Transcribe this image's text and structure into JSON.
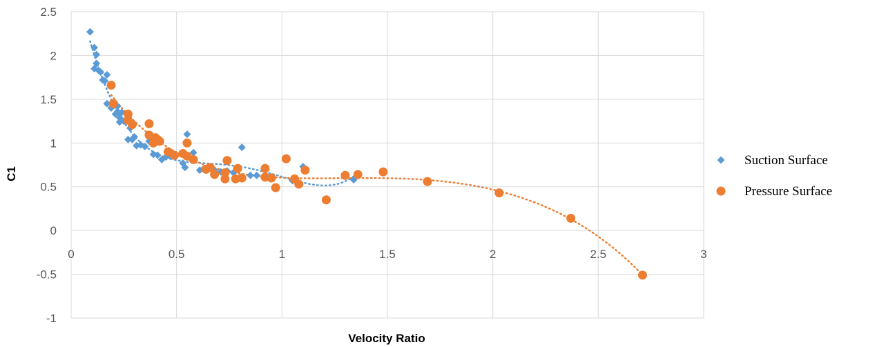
{
  "chart_data": {
    "type": "scatter",
    "xlabel": "Velocity Ratio",
    "ylabel": "C1",
    "xlim": [
      0,
      3
    ],
    "ylim": [
      -1,
      2.5
    ],
    "x_ticks": [
      "0",
      "0.5",
      "1",
      "1.5",
      "2",
      "2.5",
      "3"
    ],
    "y_ticks": [
      "-1",
      "-0.5",
      "0",
      "0.5",
      "1",
      "1.5",
      "2",
      "2.5"
    ],
    "grid": true,
    "legend": "right",
    "series": [
      {
        "name": "Suction Surface",
        "marker": "diamond",
        "color": "#5B9BD5",
        "trendline": "polynomial",
        "points": [
          [
            0.09,
            2.27
          ],
          [
            0.11,
            2.09
          ],
          [
            0.12,
            2.01
          ],
          [
            0.12,
            1.91
          ],
          [
            0.11,
            1.85
          ],
          [
            0.13,
            1.83
          ],
          [
            0.14,
            1.81
          ],
          [
            0.15,
            1.72
          ],
          [
            0.16,
            1.71
          ],
          [
            0.17,
            1.78
          ],
          [
            0.17,
            1.45
          ],
          [
            0.19,
            1.4
          ],
          [
            0.2,
            1.45
          ],
          [
            0.21,
            1.33
          ],
          [
            0.22,
            1.42
          ],
          [
            0.22,
            1.36
          ],
          [
            0.23,
            1.29
          ],
          [
            0.23,
            1.24
          ],
          [
            0.24,
            1.35
          ],
          [
            0.25,
            1.25
          ],
          [
            0.27,
            1.04
          ],
          [
            0.28,
            1.17
          ],
          [
            0.29,
            1.04
          ],
          [
            0.3,
            1.07
          ],
          [
            0.31,
            0.97
          ],
          [
            0.33,
            0.98
          ],
          [
            0.35,
            0.96
          ],
          [
            0.37,
            1.02
          ],
          [
            0.38,
            1.0
          ],
          [
            0.39,
            0.87
          ],
          [
            0.41,
            0.86
          ],
          [
            0.43,
            0.81
          ],
          [
            0.45,
            0.84
          ],
          [
            0.47,
            0.85
          ],
          [
            0.48,
            0.87
          ],
          [
            0.5,
            0.86
          ],
          [
            0.53,
            0.77
          ],
          [
            0.54,
            0.72
          ],
          [
            0.55,
            1.1
          ],
          [
            0.56,
            0.84
          ],
          [
            0.58,
            0.89
          ],
          [
            0.61,
            0.69
          ],
          [
            0.63,
            0.71
          ],
          [
            0.65,
            0.72
          ],
          [
            0.68,
            0.69
          ],
          [
            0.71,
            0.67
          ],
          [
            0.74,
            0.68
          ],
          [
            0.77,
            0.66
          ],
          [
            0.81,
            0.95
          ],
          [
            0.85,
            0.63
          ],
          [
            0.88,
            0.63
          ],
          [
            0.92,
            0.61
          ],
          [
            0.95,
            0.6
          ],
          [
            1.05,
            0.57
          ],
          [
            1.1,
            0.73
          ],
          [
            1.34,
            0.58
          ]
        ]
      },
      {
        "name": "Pressure Surface",
        "marker": "circle",
        "color": "#ED7D31",
        "trendline": "polynomial",
        "points": [
          [
            0.19,
            1.66
          ],
          [
            0.2,
            1.45
          ],
          [
            0.27,
            1.33
          ],
          [
            0.27,
            1.26
          ],
          [
            0.29,
            1.21
          ],
          [
            0.37,
            1.22
          ],
          [
            0.37,
            1.09
          ],
          [
            0.39,
            1.0
          ],
          [
            0.4,
            1.06
          ],
          [
            0.41,
            1.04
          ],
          [
            0.42,
            1.02
          ],
          [
            0.46,
            0.9
          ],
          [
            0.49,
            0.86
          ],
          [
            0.53,
            0.88
          ],
          [
            0.55,
            0.85
          ],
          [
            0.55,
            1.0
          ],
          [
            0.58,
            0.81
          ],
          [
            0.64,
            0.7
          ],
          [
            0.66,
            0.72
          ],
          [
            0.68,
            0.64
          ],
          [
            0.73,
            0.66
          ],
          [
            0.73,
            0.59
          ],
          [
            0.74,
            0.8
          ],
          [
            0.78,
            0.59
          ],
          [
            0.79,
            0.71
          ],
          [
            0.81,
            0.6
          ],
          [
            0.92,
            0.71
          ],
          [
            0.92,
            0.61
          ],
          [
            0.95,
            0.6
          ],
          [
            0.97,
            0.49
          ],
          [
            1.02,
            0.82
          ],
          [
            1.06,
            0.59
          ],
          [
            1.08,
            0.53
          ],
          [
            1.11,
            0.69
          ],
          [
            1.21,
            0.35
          ],
          [
            1.3,
            0.63
          ],
          [
            1.36,
            0.64
          ],
          [
            1.48,
            0.67
          ],
          [
            1.69,
            0.56
          ],
          [
            2.03,
            0.43
          ],
          [
            2.37,
            0.14
          ],
          [
            2.71,
            -0.51
          ]
        ]
      }
    ]
  }
}
